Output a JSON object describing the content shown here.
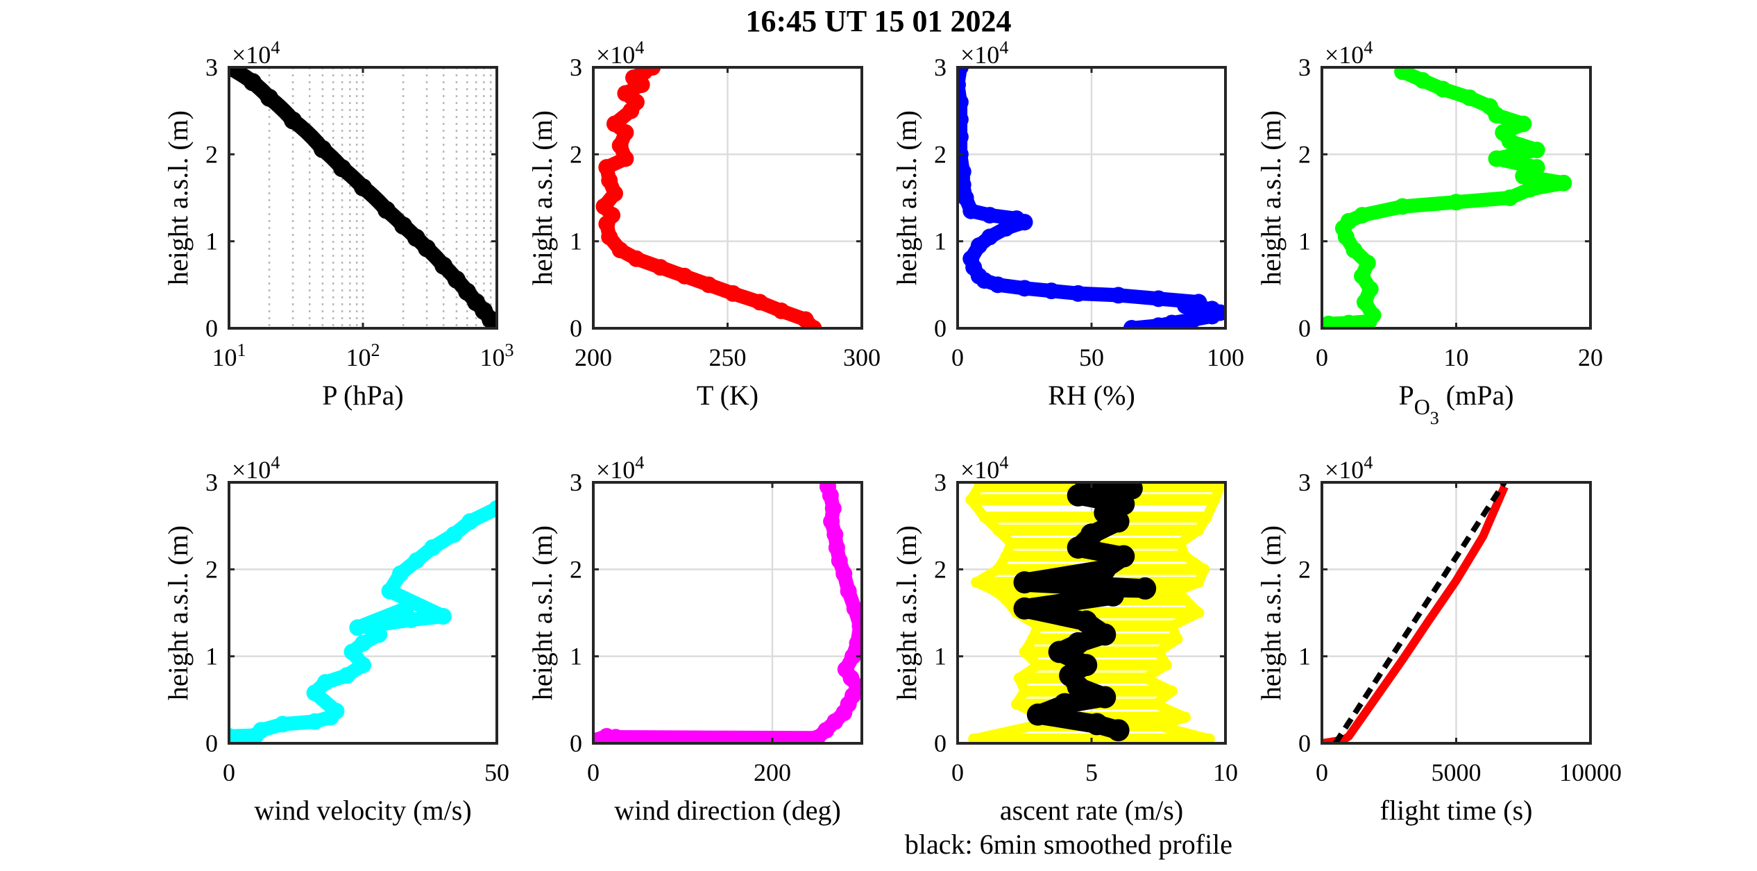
{
  "figure": {
    "title": "16:45 UT  15 01 2024",
    "note": "black: 6min smoothed profile"
  },
  "chart_data": [
    {
      "id": "pressure",
      "type": "scatter",
      "xlabel": "P (hPa)",
      "ylabel": "height a.s.l. (m)",
      "xscale": "log",
      "xlim": [
        10,
        1000
      ],
      "ylim": [
        0,
        30000
      ],
      "xticks": [
        10,
        100,
        1000
      ],
      "xticklabels": [
        "10",
        "10",
        "10"
      ],
      "xtick_exponents": [
        "1",
        "2",
        "3"
      ],
      "yticks": [
        0,
        10000,
        20000,
        30000
      ],
      "yticklabels": [
        "0",
        "1",
        "2",
        "3"
      ],
      "y_multiplier": "×10",
      "y_multiplier_exp": "4",
      "grid": "log-minor-dotted",
      "series": [
        {
          "color": "#000000",
          "marker_size": 13,
          "x": [
            1000,
            900,
            800,
            700,
            600,
            500,
            400,
            300,
            250,
            200,
            150,
            100,
            70,
            50,
            30,
            20,
            15,
            10
          ],
          "y": [
            0,
            1000,
            2000,
            3000,
            4200,
            5600,
            7200,
            9200,
            10400,
            11800,
            13600,
            16200,
            18400,
            20600,
            23900,
            26500,
            28300,
            30000
          ]
        }
      ]
    },
    {
      "id": "temperature",
      "type": "scatter",
      "xlabel": "T (K)",
      "ylabel": "height a.s.l. (m)",
      "xlim": [
        200,
        300
      ],
      "ylim": [
        0,
        30000
      ],
      "xticks": [
        200,
        250,
        300
      ],
      "xticklabels": [
        "200",
        "250",
        "300"
      ],
      "yticks": [
        0,
        10000,
        20000,
        30000
      ],
      "yticklabels": [
        "0",
        "1",
        "2",
        "3"
      ],
      "y_multiplier": "×10",
      "y_multiplier_exp": "4",
      "grid": "major",
      "series": [
        {
          "color": "#ff0000",
          "marker_size": 12,
          "x": [
            282,
            279,
            270,
            262,
            252,
            243,
            234,
            225,
            216,
            210,
            206,
            205,
            207,
            204,
            208,
            206,
            205,
            212,
            210,
            212,
            208,
            214,
            216,
            212,
            218,
            215,
            219,
            222
          ],
          "y": [
            0,
            1000,
            2000,
            3000,
            4000,
            5000,
            6000,
            7000,
            8000,
            9000,
            10500,
            12000,
            13000,
            14000,
            15500,
            17000,
            18500,
            19500,
            21000,
            22500,
            23500,
            25000,
            26000,
            27000,
            28000,
            28800,
            29500,
            30000
          ]
        }
      ]
    },
    {
      "id": "rh",
      "type": "scatter",
      "xlabel": "RH (%)",
      "ylabel": "height a.s.l. (m)",
      "xlim": [
        0,
        100
      ],
      "ylim": [
        0,
        30000
      ],
      "xticks": [
        0,
        50,
        100
      ],
      "xticklabels": [
        "0",
        "50",
        "100"
      ],
      "yticks": [
        0,
        10000,
        20000,
        30000
      ],
      "yticklabels": [
        "0",
        "1",
        "2",
        "3"
      ],
      "y_multiplier": "×10",
      "y_multiplier_exp": "4",
      "grid": "major",
      "series": [
        {
          "color": "#0000ff",
          "marker_size": 12,
          "x": [
            65,
            75,
            80,
            88,
            95,
            98,
            95,
            85,
            90,
            75,
            60,
            45,
            35,
            25,
            15,
            10,
            8,
            6,
            5,
            8,
            12,
            18,
            25,
            22,
            12,
            5,
            3,
            2,
            2,
            1,
            1,
            1,
            1,
            0,
            1
          ],
          "y": [
            0,
            300,
            600,
            1000,
            1400,
            1800,
            2200,
            2600,
            3000,
            3400,
            3800,
            4000,
            4300,
            4600,
            5000,
            5500,
            6000,
            7000,
            8000,
            9500,
            10500,
            11500,
            12200,
            12600,
            13000,
            13500,
            15000,
            16500,
            18000,
            20000,
            22000,
            24000,
            26000,
            28000,
            30000
          ]
        }
      ]
    },
    {
      "id": "ozone",
      "type": "scatter",
      "xlabel": "P",
      "xlabel_sub": "O",
      "xlabel_subsub": "3",
      "xlabel_tail": " (mPa)",
      "ylabel": "height a.s.l. (m)",
      "xlim": [
        0,
        20
      ],
      "ylim": [
        0,
        30000
      ],
      "xticks": [
        0,
        10,
        20
      ],
      "xticklabels": [
        "0",
        "10",
        "20"
      ],
      "yticks": [
        0,
        10000,
        20000,
        30000
      ],
      "yticklabels": [
        "0",
        "1",
        "2",
        "3"
      ],
      "y_multiplier": "×10",
      "y_multiplier_exp": "4",
      "grid": "major",
      "series": [
        {
          "color": "#00ff00",
          "marker_size": 12,
          "x": [
            0.5,
            2,
            3.5,
            3.8,
            3.2,
            3.6,
            3.0,
            3.4,
            2.4,
            1.8,
            1.6,
            2.0,
            3.0,
            6.0,
            10.0,
            14.0,
            15.5,
            18.0,
            15.0,
            16.0,
            13.0,
            16.0,
            14.0,
            13.5,
            15.0,
            13.0,
            12.5,
            11.0,
            9.0,
            7.5,
            6.0
          ],
          "y": [
            500,
            600,
            800,
            1500,
            3000,
            4500,
            6000,
            7500,
            9000,
            10500,
            11500,
            12300,
            13000,
            14000,
            14500,
            15000,
            16000,
            16700,
            17500,
            18500,
            19500,
            20500,
            21500,
            22500,
            23500,
            24500,
            25500,
            26500,
            27500,
            28500,
            29500
          ]
        }
      ]
    },
    {
      "id": "wind-velocity",
      "type": "scatter",
      "xlabel": "wind velocity (m/s)",
      "ylabel": "height a.s.l. (m)",
      "xlim": [
        0,
        50
      ],
      "ylim": [
        0,
        30000
      ],
      "xticks": [
        0,
        50
      ],
      "xticklabels": [
        "0",
        "50"
      ],
      "yticks": [
        0,
        10000,
        20000,
        30000
      ],
      "yticklabels": [
        "0",
        "1",
        "2",
        "3"
      ],
      "y_multiplier": "×10",
      "y_multiplier_exp": "4",
      "grid": "major",
      "series": [
        {
          "color": "#00ffff",
          "marker_size": 12,
          "x": [
            0,
            5,
            6,
            10,
            16,
            19,
            20,
            16,
            18,
            22,
            25,
            23,
            25,
            28,
            27,
            30,
            33,
            24,
            34,
            40,
            30,
            32,
            35,
            38,
            42,
            45,
            50
          ],
          "y": [
            800,
            900,
            1500,
            2200,
            2500,
            3000,
            3700,
            5800,
            7000,
            7800,
            9000,
            10500,
            11500,
            12500,
            13700,
            14500,
            15500,
            13300,
            14200,
            14600,
            17500,
            19500,
            21000,
            22500,
            24000,
            25500,
            27000
          ]
        }
      ]
    },
    {
      "id": "wind-direction",
      "type": "scatter",
      "xlabel": "wind direction (deg)",
      "ylabel": "height a.s.l. (m)",
      "xlim": [
        0,
        300
      ],
      "ylim": [
        0,
        30000
      ],
      "xticks": [
        0,
        200
      ],
      "xticklabels": [
        "0",
        "200"
      ],
      "yticks": [
        0,
        10000,
        20000,
        30000
      ],
      "yticklabels": [
        "0",
        "1",
        "2",
        "3"
      ],
      "y_multiplier": "×10",
      "y_multiplier_exp": "4",
      "grid": "major",
      "series": [
        {
          "color": "#ff00ff",
          "marker_size": 12,
          "x": [
            0,
            15,
            25,
            250,
            260,
            270,
            280,
            285,
            290,
            295,
            288,
            282,
            290,
            295,
            298,
            292,
            285,
            280,
            275,
            272,
            270,
            266,
            268,
            265,
            262,
            262
          ],
          "y": [
            300,
            800,
            700,
            600,
            1500,
            2500,
            3500,
            4500,
            5500,
            6500,
            7500,
            8500,
            10000,
            11500,
            13500,
            15500,
            17500,
            19500,
            21000,
            22500,
            24000,
            25500,
            27000,
            28500,
            29500,
            30000
          ]
        }
      ]
    },
    {
      "id": "ascent-rate",
      "type": "scatter",
      "xlabel": "ascent rate (m/s)",
      "ylabel": "height a.s.l. (m)",
      "xlim": [
        0,
        10
      ],
      "ylim": [
        0,
        30000
      ],
      "xticks": [
        0,
        5,
        10
      ],
      "xticklabels": [
        "0",
        "5",
        "10"
      ],
      "yticks": [
        0,
        10000,
        20000,
        30000
      ],
      "yticklabels": [
        "0",
        "1",
        "2",
        "3"
      ],
      "y_multiplier": "×10",
      "y_multiplier_exp": "4",
      "grid": "major",
      "series": [
        {
          "color": "#ffff00",
          "marker_size": 10,
          "kind": "band",
          "left": [
            0.6,
            2.8,
            3.2,
            2.2,
            2.5,
            2.3,
            3.0,
            2.5,
            2.8,
            3.0,
            2.2,
            1.8,
            1.4,
            0.7,
            1.5,
            1.8,
            2.0,
            1.5,
            1.0,
            0.5,
            0.8
          ],
          "right": [
            9.4,
            7.5,
            8.5,
            7.4,
            8.0,
            7.0,
            7.8,
            7.5,
            8.2,
            8.0,
            9.0,
            8.5,
            8.2,
            9.0,
            9.2,
            8.5,
            8.3,
            9.0,
            9.3,
            9.6,
            9.8
          ],
          "y": [
            500,
            2000,
            3000,
            4500,
            6000,
            7500,
            9000,
            10500,
            12000,
            13500,
            15000,
            16500,
            17500,
            18500,
            20000,
            21500,
            23000,
            24500,
            26000,
            28000,
            29500
          ]
        },
        {
          "color": "#000000",
          "marker_size": 16,
          "x": [
            6.0,
            5.2,
            3.0,
            4.0,
            5.5,
            4.5,
            4.2,
            4.8,
            3.8,
            4.5,
            5.5,
            4.8,
            2.5,
            5.8,
            4.2,
            7.0,
            2.5,
            5.5,
            6.2,
            4.5,
            5.0,
            6.0,
            5.5,
            6.2,
            4.5,
            6.5,
            4.8
          ],
          "y": [
            1500,
            2200,
            3300,
            4500,
            5300,
            6500,
            7800,
            9000,
            10500,
            11500,
            12500,
            14000,
            15500,
            17000,
            18000,
            17800,
            18500,
            20000,
            21500,
            22500,
            24000,
            25500,
            26500,
            27500,
            28500,
            29300,
            30000
          ]
        }
      ]
    },
    {
      "id": "flight-time",
      "type": "line",
      "xlabel": "flight time (s)",
      "ylabel": "height a.s.l. (m)",
      "xlim": [
        0,
        10000
      ],
      "ylim": [
        0,
        30000
      ],
      "xticks": [
        0,
        5000,
        10000
      ],
      "xticklabels": [
        "0",
        "5000",
        "10000"
      ],
      "yticks": [
        0,
        10000,
        20000,
        30000
      ],
      "yticklabels": [
        "0",
        "1",
        "2",
        "3"
      ],
      "y_multiplier": "×10",
      "y_multiplier_exp": "4",
      "grid": "major",
      "series": [
        {
          "color": "#ff0000",
          "marker_size": 10,
          "kind": "dashed-thick",
          "x": [
            0,
            400,
            800,
            1000,
            2000,
            3000,
            4000,
            5000,
            6000,
            6800
          ],
          "y": [
            0,
            200,
            400,
            800,
            5200,
            9600,
            14200,
            18700,
            23800,
            29500
          ]
        },
        {
          "color": "#000000",
          "kind": "dashed-line",
          "x": [
            500,
            6800
          ],
          "y": [
            0,
            30000
          ]
        }
      ]
    }
  ]
}
